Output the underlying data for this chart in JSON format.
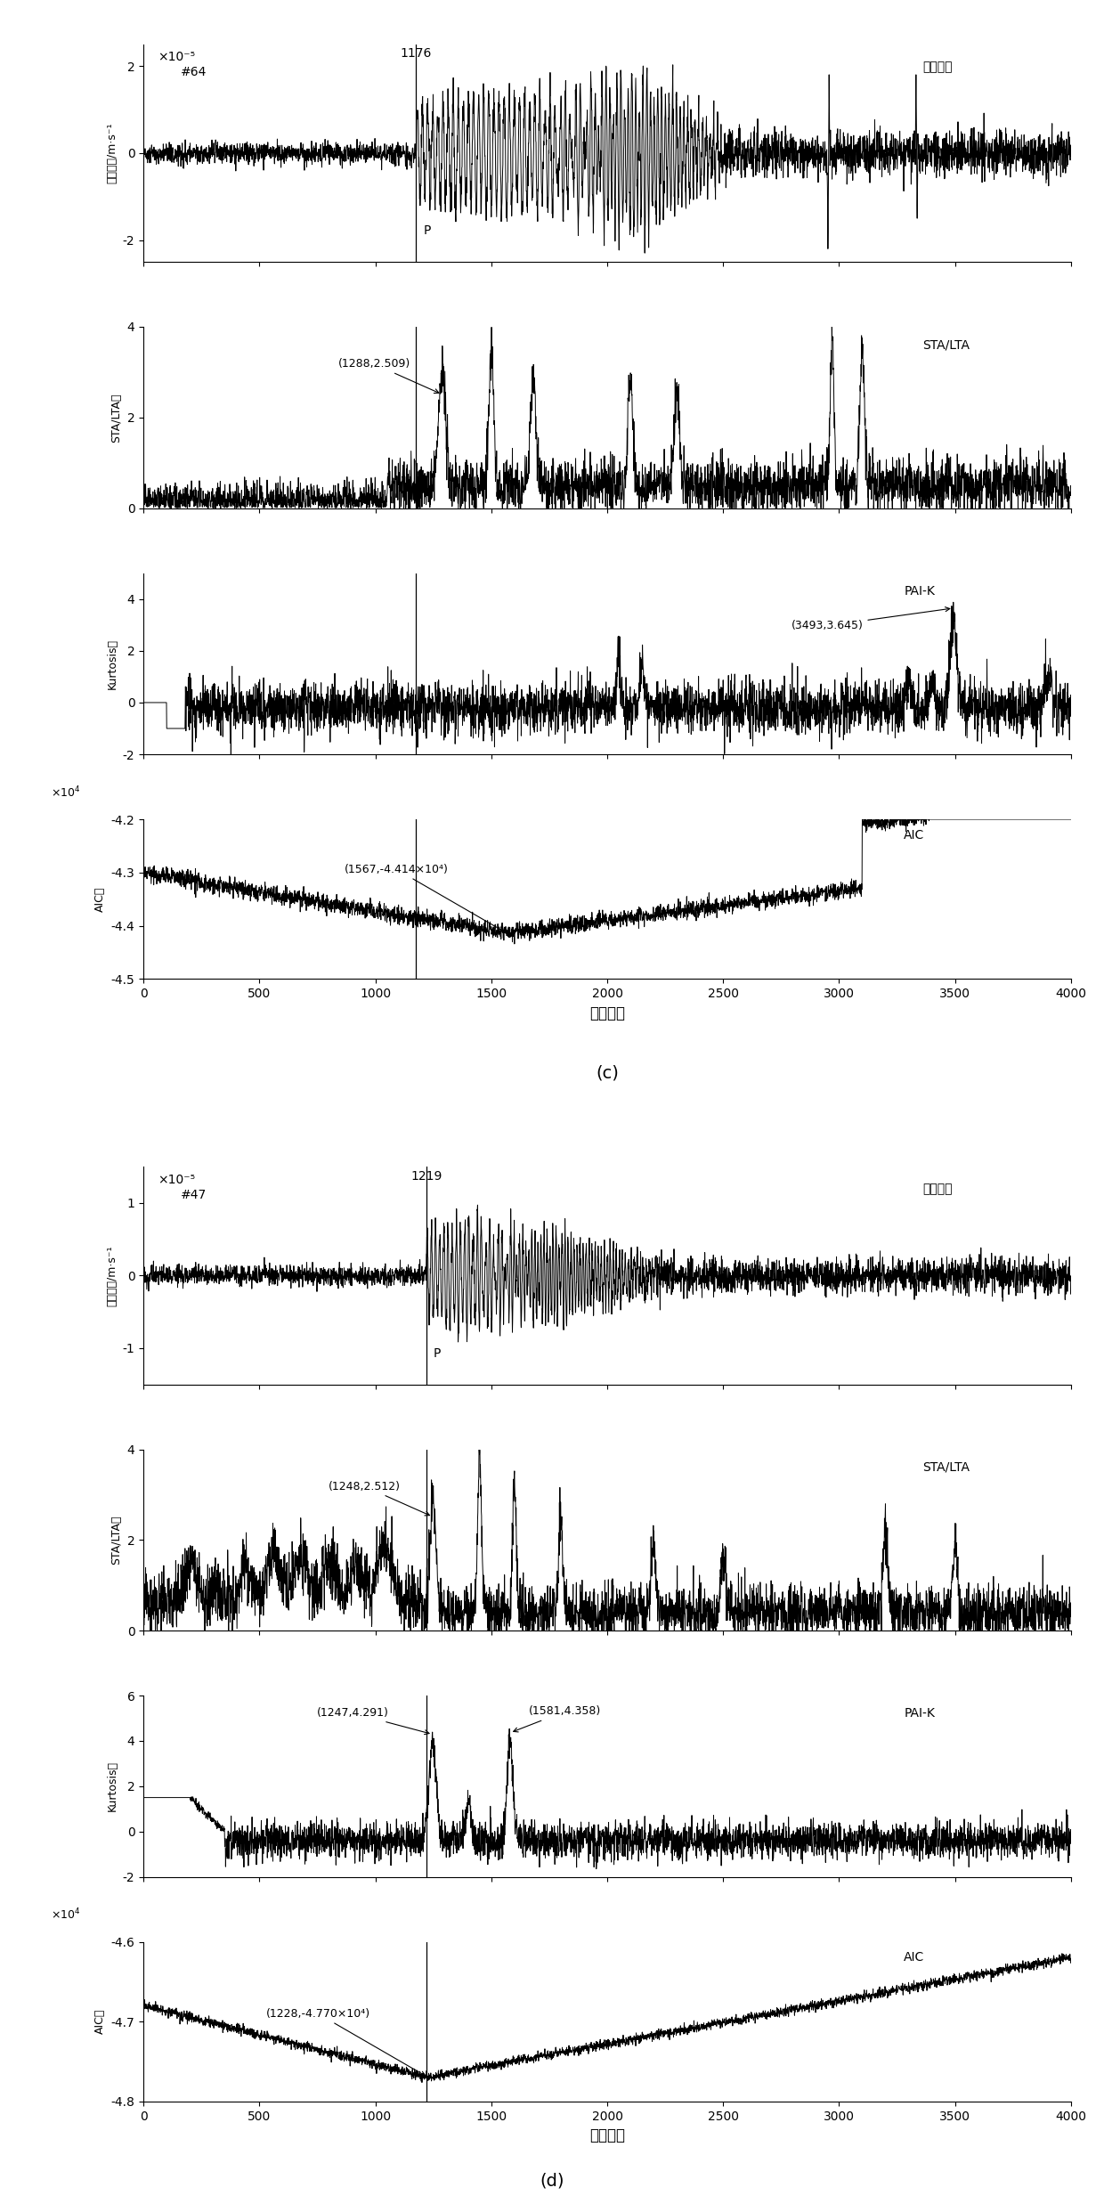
{
  "panel_c": {
    "wave_channel": "#64",
    "p_arrival": 1176,
    "wave_scale_label": "×10⁻⁵",
    "wave_annotation": "1176",
    "wave_text": "微震波形",
    "wave_ylabel": "速度振幅/m·s⁻¹",
    "wave_ylim": [
      -2.5e-05,
      2.5e-05
    ],
    "wave_ytick_labels": [
      "-2",
      "0",
      "2"
    ],
    "wave_ytick_vals": [
      -2e-05,
      0,
      2e-05
    ],
    "stalta_ylabel": "STA/LTA値",
    "stalta_ylim": [
      0,
      4
    ],
    "stalta_yticks": [
      0,
      2,
      4
    ],
    "stalta_peak": [
      1288,
      2.509
    ],
    "stalta_text": "STA/LTA",
    "kurtosis_ylabel": "Kurtosis値",
    "kurtosis_ylim": [
      -2,
      5
    ],
    "kurtosis_yticks": [
      -2,
      0,
      2,
      4
    ],
    "kurtosis_peak": [
      3493,
      3.645
    ],
    "kurtosis_text": "PAI-K",
    "aic_ylabel": "AIC値",
    "aic_ylim": [
      -45000.0,
      -42000.0
    ],
    "aic_ytick_vals": [
      -45000.0,
      -44000.0,
      -43000.0,
      -42000.0
    ],
    "aic_ytick_labels": [
      "-4.5",
      "-4.4",
      "-4.3",
      "-4.2"
    ],
    "aic_min": [
      1567,
      -44140.0
    ],
    "aic_text": "AIC",
    "aic_annotation": "(1567,-4.414×10⁴)",
    "xlabel": "采样点数",
    "xlim": [
      0,
      4000
    ],
    "xticks": [
      0,
      500,
      1000,
      1500,
      2000,
      2500,
      3000,
      3500,
      4000
    ],
    "panel_label": "(c)"
  },
  "panel_d": {
    "wave_channel": "#47",
    "p_arrival": 1219,
    "wave_scale_label": "×10⁻⁵",
    "wave_annotation": "1219",
    "wave_text": "微震波形",
    "wave_ylabel": "速度振幅/m·s⁻¹",
    "wave_ylim": [
      -1.5e-05,
      1.5e-05
    ],
    "wave_ytick_labels": [
      "-1",
      "0",
      "1"
    ],
    "wave_ytick_vals": [
      -1e-05,
      0,
      1e-05
    ],
    "stalta_ylabel": "STA/LTA値",
    "stalta_ylim": [
      0,
      4
    ],
    "stalta_yticks": [
      0,
      2,
      4
    ],
    "stalta_peak": [
      1248,
      2.512
    ],
    "stalta_text": "STA/LTA",
    "kurtosis_ylabel": "Kurtosis値",
    "kurtosis_ylim": [
      -2,
      6
    ],
    "kurtosis_yticks": [
      -2,
      0,
      2,
      4,
      6
    ],
    "kurtosis_peak1": [
      1247,
      4.291
    ],
    "kurtosis_peak2": [
      1581,
      4.358
    ],
    "kurtosis_text": "PAI-K",
    "aic_ylabel": "AIC値",
    "aic_ylim": [
      -48000.0,
      -46000.0
    ],
    "aic_ytick_vals": [
      -48000.0,
      -47000.0,
      -46000.0
    ],
    "aic_ytick_labels": [
      "-4.8",
      "-4.7",
      "-4.6"
    ],
    "aic_min": [
      1228,
      -47700.0
    ],
    "aic_text": "AIC",
    "aic_annotation": "(1228,-4.770×10⁴)",
    "xlabel": "采样点数",
    "xlim": [
      0,
      4000
    ],
    "xticks": [
      0,
      500,
      1000,
      1500,
      2000,
      2500,
      3000,
      3500,
      4000
    ],
    "panel_label": "(d)"
  }
}
